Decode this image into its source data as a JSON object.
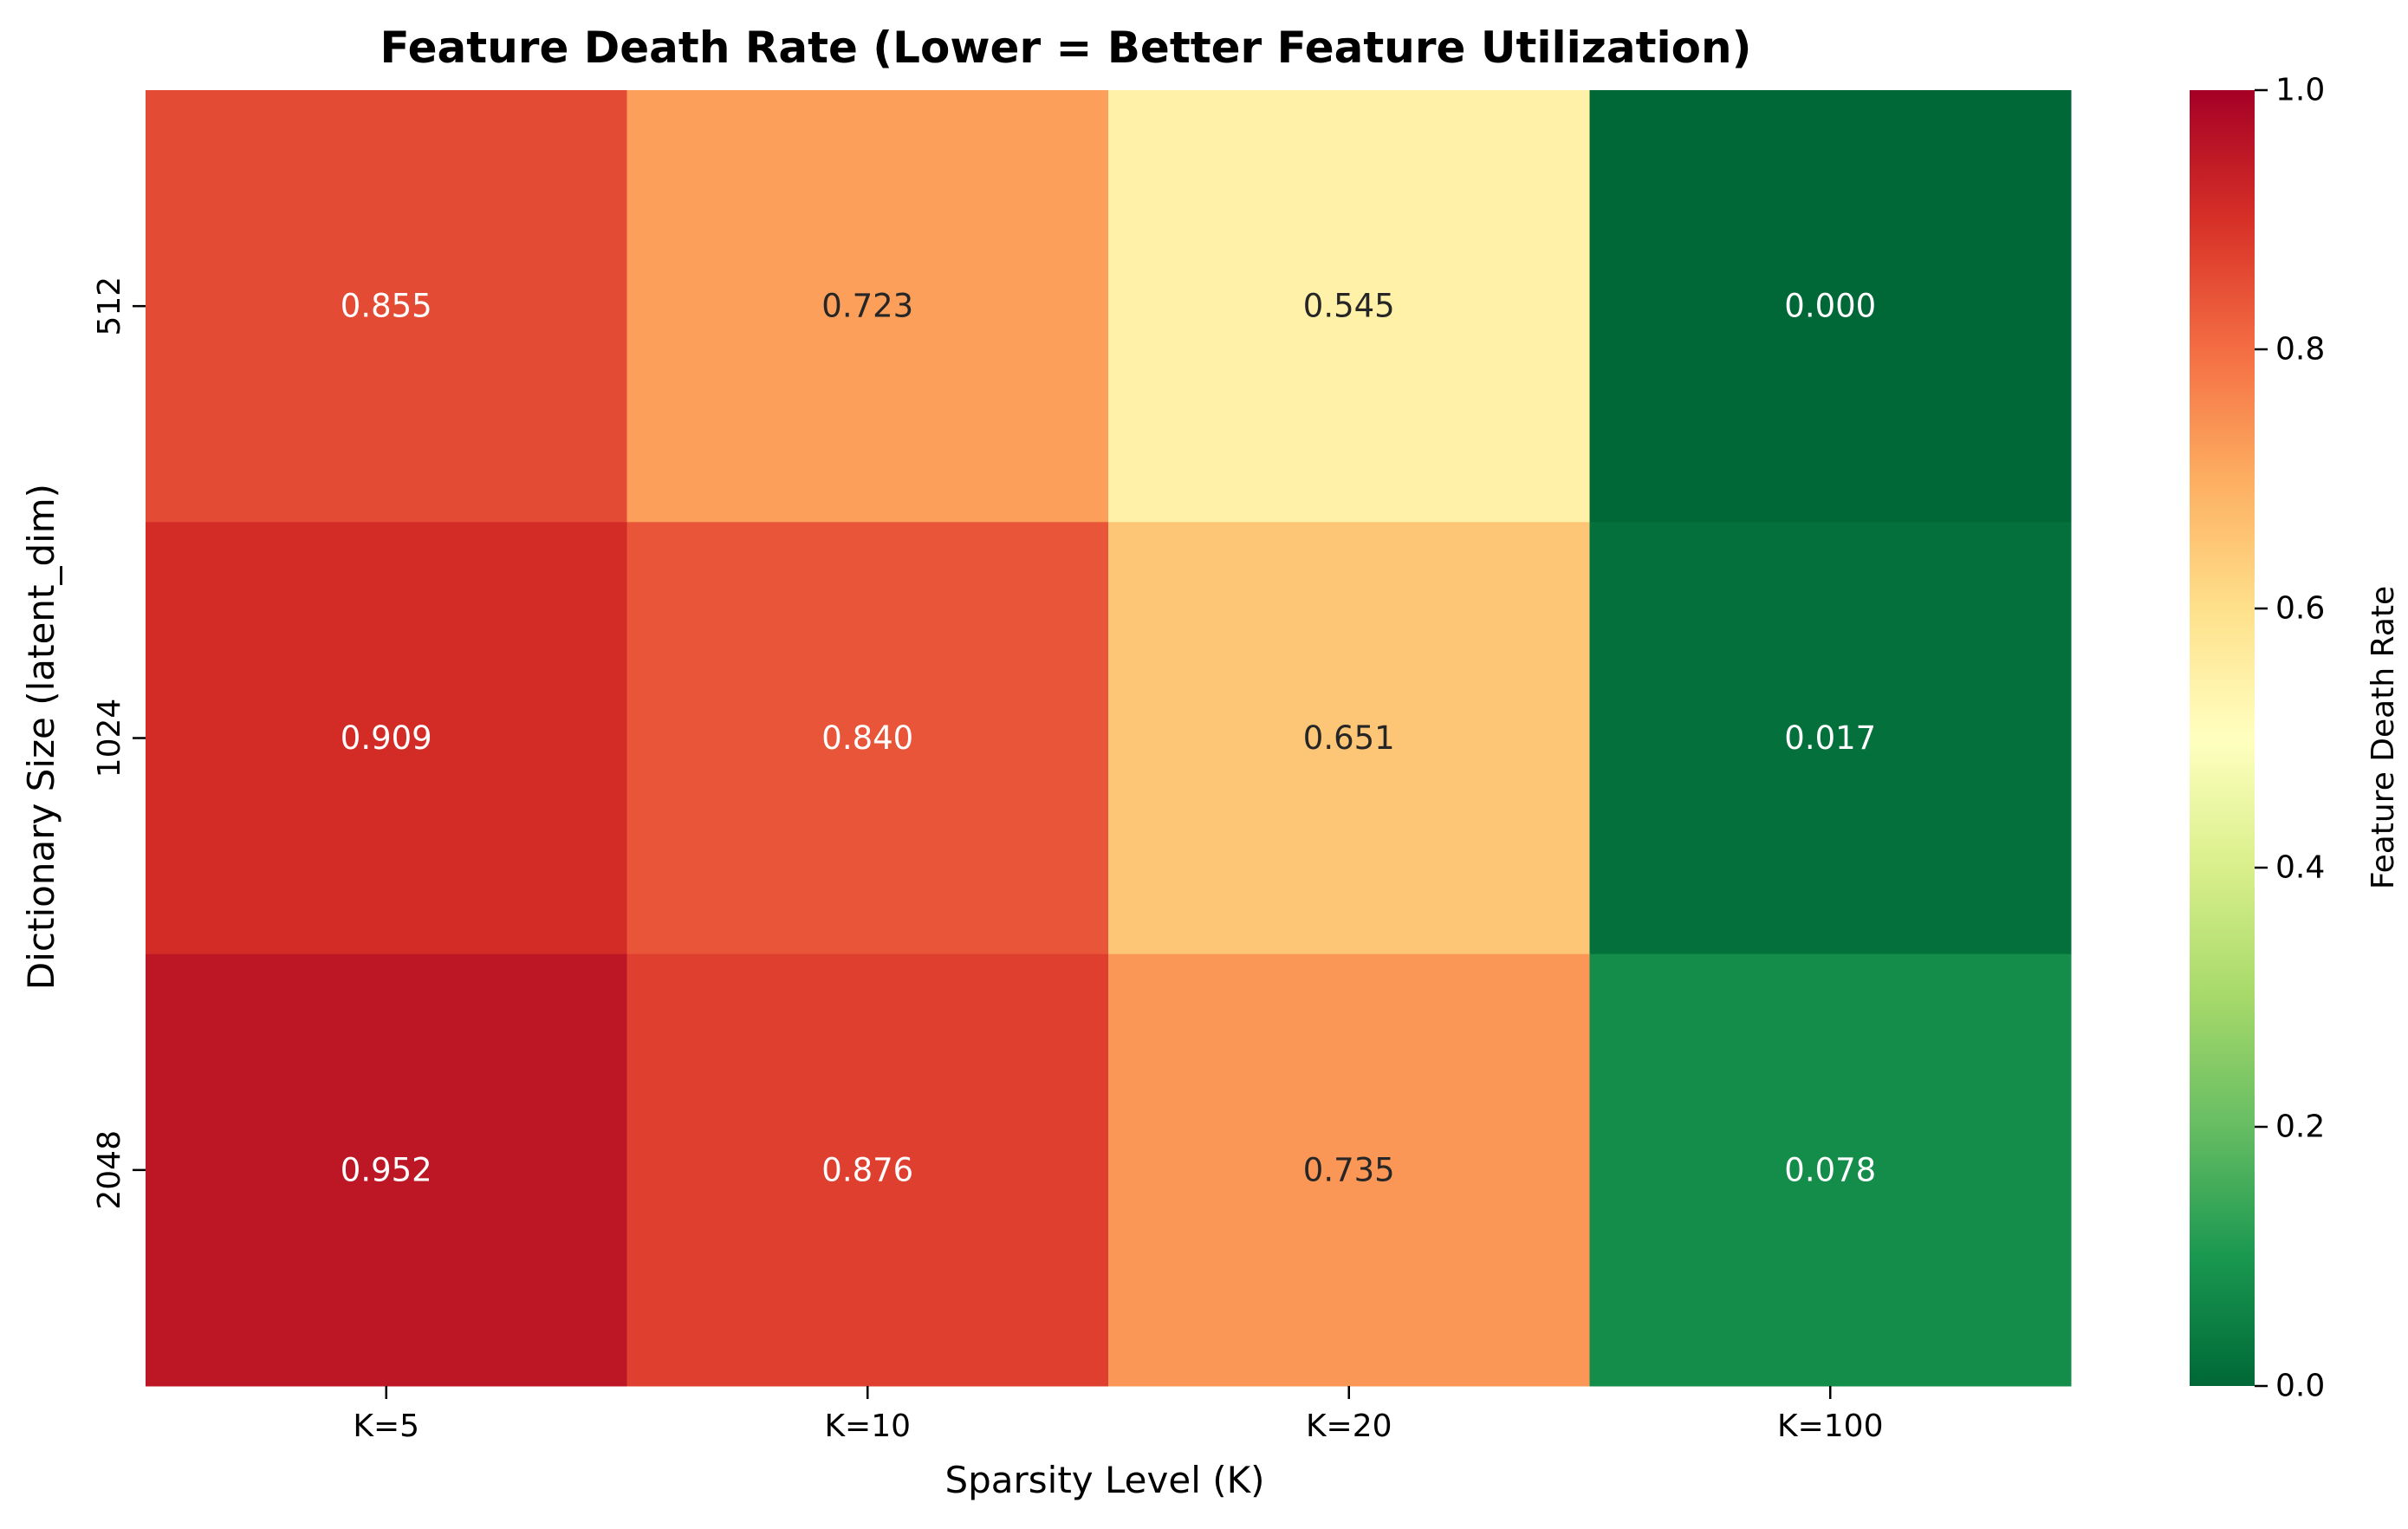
{
  "chart_data": {
    "type": "heatmap",
    "title": "Feature Death Rate (Lower = Better Feature Utilization)",
    "xlabel": "Sparsity Level (K)",
    "ylabel": "Dictionary Size (latent_dim)",
    "x_categories": [
      "K=5",
      "K=10",
      "K=20",
      "K=100"
    ],
    "y_categories": [
      "512",
      "1024",
      "2048"
    ],
    "values": [
      [
        0.855,
        0.723,
        0.545,
        0.0
      ],
      [
        0.909,
        0.84,
        0.651,
        0.017
      ],
      [
        0.952,
        0.876,
        0.735,
        0.078
      ]
    ],
    "value_labels": [
      [
        "0.855",
        "0.723",
        "0.545",
        "0.000"
      ],
      [
        "0.909",
        "0.840",
        "0.651",
        "0.017"
      ],
      [
        "0.952",
        "0.876",
        "0.735",
        "0.078"
      ]
    ],
    "colormap": "RdYlGn_r",
    "colorbar": {
      "label": "Feature Death Rate",
      "range": [
        0,
        1
      ],
      "ticks": [
        "0.0",
        "0.2",
        "0.4",
        "0.6",
        "0.8",
        "1.0"
      ]
    },
    "colors": {
      "low": "#006837",
      "mid": "#ffffbf",
      "high": "#a50026"
    }
  }
}
